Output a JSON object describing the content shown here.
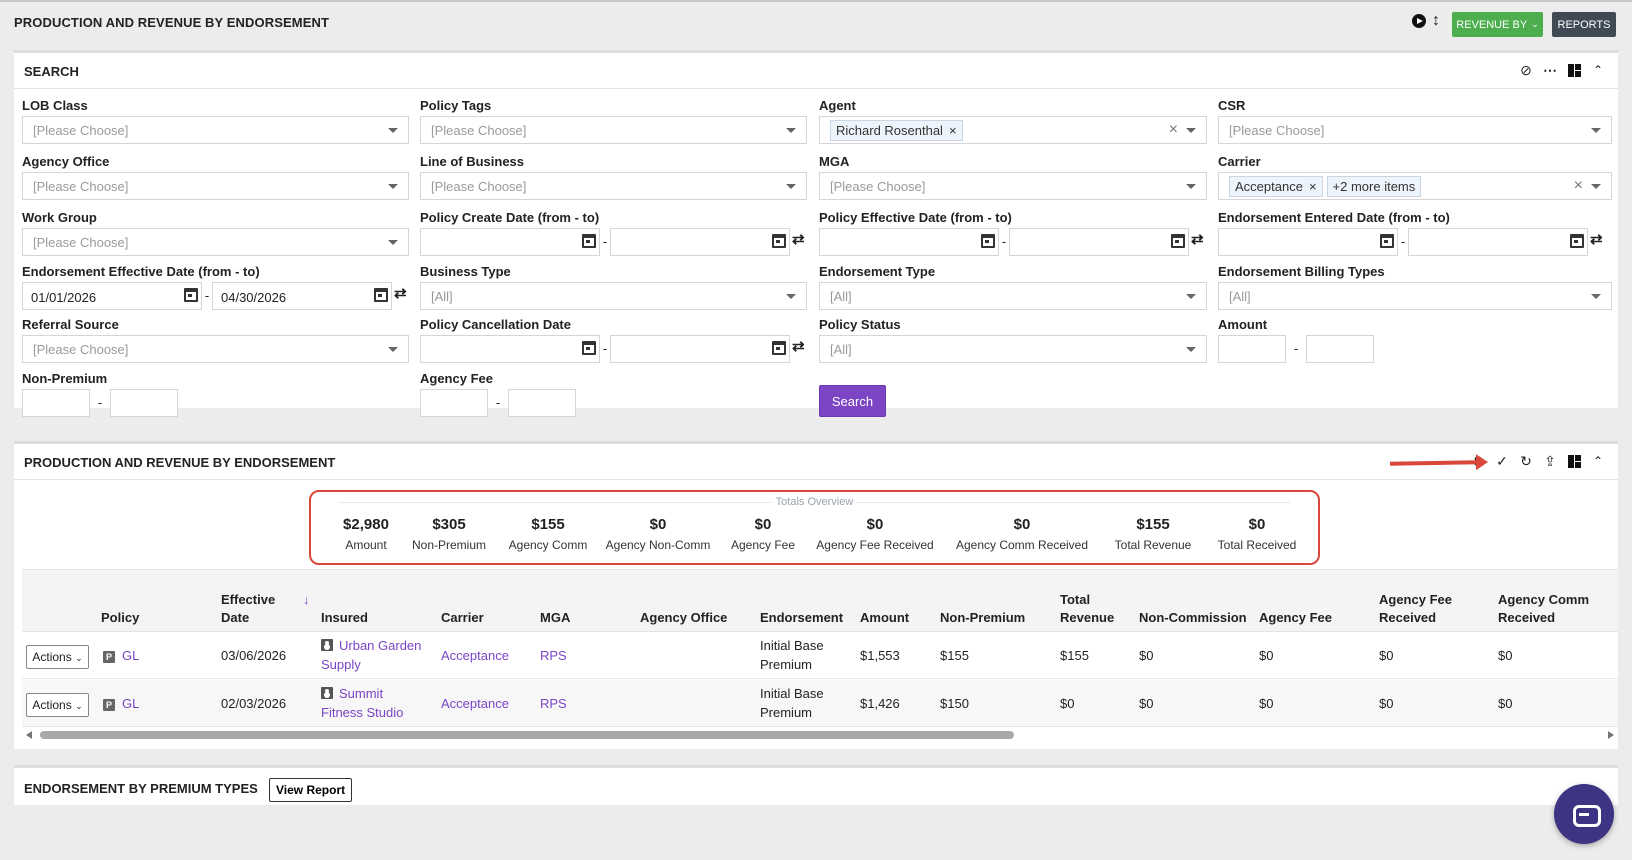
{
  "header": {
    "title": "PRODUCTION AND REVENUE BY ENDORSEMENT",
    "revenue_by_label": "REVENUE BY",
    "reports_label": "REPORTS"
  },
  "search_panel": {
    "title": "SEARCH",
    "fields": {
      "lob_class": {
        "label": "LOB Class",
        "placeholder": "[Please Choose]"
      },
      "policy_tags": {
        "label": "Policy Tags",
        "placeholder": "[Please Choose]"
      },
      "agent": {
        "label": "Agent",
        "chip": "Richard Rosenthal"
      },
      "csr": {
        "label": "CSR",
        "placeholder": "[Please Choose]"
      },
      "agency_office": {
        "label": "Agency Office",
        "placeholder": "[Please Choose]"
      },
      "line_of_business": {
        "label": "Line of Business",
        "placeholder": "[Please Choose]"
      },
      "mga": {
        "label": "MGA",
        "placeholder": "[Please Choose]"
      },
      "carrier": {
        "label": "Carrier",
        "chip": "Acceptance",
        "more_chip": "+2 more items"
      },
      "work_group": {
        "label": "Work Group",
        "placeholder": "[Please Choose]"
      },
      "policy_create_date": {
        "label": "Policy Create Date (from - to)"
      },
      "policy_effective_date": {
        "label": "Policy Effective Date (from - to)"
      },
      "endorsement_entered_date": {
        "label": "Endorsement Entered Date (from - to)"
      },
      "endorsement_effective_date": {
        "label": "Endorsement Effective Date (from - to)",
        "from": "01/01/2026",
        "to": "04/30/2026"
      },
      "business_type": {
        "label": "Business Type",
        "placeholder": "[All]"
      },
      "endorsement_type": {
        "label": "Endorsement Type",
        "placeholder": "[All]"
      },
      "endorsement_billing_types": {
        "label": "Endorsement Billing Types",
        "placeholder": "[All]"
      },
      "referral_source": {
        "label": "Referral Source",
        "placeholder": "[Please Choose]"
      },
      "policy_cancellation_date": {
        "label": "Policy Cancellation Date"
      },
      "policy_status": {
        "label": "Policy Status",
        "placeholder": "[All]"
      },
      "amount": {
        "label": "Amount"
      },
      "non_premium": {
        "label": "Non-Premium"
      },
      "agency_fee": {
        "label": "Agency Fee"
      }
    },
    "search_button": "Search"
  },
  "results_panel": {
    "title": "PRODUCTION AND REVENUE BY ENDORSEMENT",
    "totals_legend": "Totals Overview",
    "totals": [
      {
        "value": "$2,980",
        "label": "Amount"
      },
      {
        "value": "$305",
        "label": "Non-Premium"
      },
      {
        "value": "$155",
        "label": "Agency Comm"
      },
      {
        "value": "$0",
        "label": "Agency Non-Comm"
      },
      {
        "value": "$0",
        "label": "Agency Fee"
      },
      {
        "value": "$0",
        "label": "Agency Fee Received"
      },
      {
        "value": "$0",
        "label": "Agency Comm Received"
      },
      {
        "value": "$155",
        "label": "Total Revenue"
      },
      {
        "value": "$0",
        "label": "Total Received"
      }
    ],
    "columns": {
      "policy": "Policy",
      "effective_date_1": "Effective",
      "effective_date_2": "Date",
      "sort_arrow": "↓",
      "insured": "Insured",
      "carrier": "Carrier",
      "mga": "MGA",
      "agency_office": "Agency Office",
      "endorsement": "Endorsement",
      "amount": "Amount",
      "non_premium": "Non-Premium",
      "total_revenue_1": "Total",
      "total_revenue_2": "Revenue",
      "non_commission": "Non-Commission",
      "agency_fee": "Agency Fee",
      "agency_fee_received_1": "Agency Fee",
      "agency_fee_received_2": "Received",
      "agency_comm_received_1": "Agency Comm",
      "agency_comm_received_2": "Received"
    },
    "rows": [
      {
        "actions": "Actions",
        "policy": "GL",
        "effective_date": "03/06/2026",
        "insured_1": "Urban Garden",
        "insured_2": "Supply",
        "carrier": "Acceptance",
        "mga": "RPS",
        "agency_office": "",
        "endorsement_1": "Initial Base",
        "endorsement_2": "Premium",
        "amount": "$1,553",
        "non_premium": "$155",
        "total_revenue": "$155",
        "non_commission": "$0",
        "agency_fee": "$0",
        "agency_fee_received": "$0",
        "agency_comm_received": "$0"
      },
      {
        "actions": "Actions",
        "policy": "GL",
        "effective_date": "02/03/2026",
        "insured_1": "Summit",
        "insured_2": "Fitness Studio",
        "carrier": "Acceptance",
        "mga": "RPS",
        "agency_office": "",
        "endorsement_1": "Initial Base",
        "endorsement_2": "Premium",
        "amount": "$1,426",
        "non_premium": "$150",
        "total_revenue": "$0",
        "non_commission": "$0",
        "agency_fee": "$0",
        "agency_fee_received": "$0",
        "agency_comm_received": "$0"
      }
    ]
  },
  "premium_panel": {
    "title": "ENDORSEMENT BY PREMIUM TYPES",
    "view_report": "View Report"
  },
  "colors": {
    "accent_purple": "#7b45c5",
    "green_button": "#4cae4c",
    "dark_button": "#3f4a55",
    "highlight_red": "#d9463a"
  },
  "icons": [
    "play-icon",
    "sort-vertical-icon",
    "ban-icon",
    "ellipsis-icon",
    "layout-icon",
    "chevron-up-icon",
    "dollar-icon",
    "check-icon",
    "refresh-icon",
    "export-icon",
    "calendar-icon",
    "swap-icon",
    "policy-icon",
    "user-icon",
    "chat-icon"
  ]
}
